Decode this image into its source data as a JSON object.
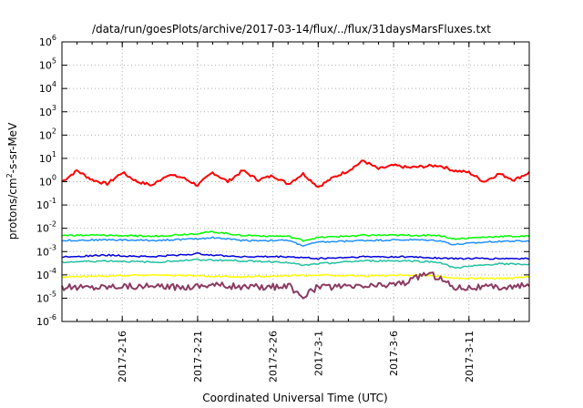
{
  "chart_data": {
    "type": "line",
    "title": "/data/run/goesPlots/archive/2017-03-14/flux/../flux/31daysMarsFluxes.txt",
    "xlabel": "Coordinated Universal Time (UTC)",
    "ylabel": {
      "pre": "protons/cm",
      "sup": "2",
      "post": "-s-sr-MeV"
    },
    "yscale": "log",
    "ylim": [
      1e-06,
      1000000.0
    ],
    "xlim": [
      "2017-02-12",
      "2017-03-15"
    ],
    "grid": true,
    "legend": "none",
    "y_ticks": [
      {
        "value": 1e-06,
        "base": "10",
        "exp": "-6"
      },
      {
        "value": 1e-05,
        "base": "10",
        "exp": "-5"
      },
      {
        "value": 0.0001,
        "base": "10",
        "exp": "-4"
      },
      {
        "value": 0.001,
        "base": "10",
        "exp": "-3"
      },
      {
        "value": 0.01,
        "base": "10",
        "exp": "-2"
      },
      {
        "value": 0.1,
        "base": "10",
        "exp": "-1"
      },
      {
        "value": 1,
        "base": "10",
        "exp": "0"
      },
      {
        "value": 10.0,
        "base": "10",
        "exp": "1"
      },
      {
        "value": 100.0,
        "base": "10",
        "exp": "2"
      },
      {
        "value": 1000.0,
        "base": "10",
        "exp": "3"
      },
      {
        "value": 10000.0,
        "base": "10",
        "exp": "4"
      },
      {
        "value": 100000.0,
        "base": "10",
        "exp": "5"
      },
      {
        "value": 1000000.0,
        "base": "10",
        "exp": "6"
      }
    ],
    "x_ticks": [
      {
        "date": "2017-02-16",
        "label": "2017-2-16"
      },
      {
        "date": "2017-02-21",
        "label": "2017-2-21"
      },
      {
        "date": "2017-02-26",
        "label": "2017-2-26"
      },
      {
        "date": "2017-03-01",
        "label": "2017-3-1"
      },
      {
        "date": "2017-03-06",
        "label": "2017-3-6"
      },
      {
        "date": "2017-03-11",
        "label": "2017-3-11"
      }
    ],
    "series": [
      {
        "color": "#ff0000",
        "stroke": 2.0,
        "x": [
          "2017-02-12",
          "2017-02-13",
          "2017-02-14",
          "2017-02-15",
          "2017-02-16",
          "2017-02-17",
          "2017-02-18",
          "2017-02-19",
          "2017-02-20",
          "2017-02-21",
          "2017-02-22",
          "2017-02-23",
          "2017-02-24",
          "2017-02-25",
          "2017-02-26",
          "2017-02-27",
          "2017-02-28",
          "2017-03-01",
          "2017-03-02",
          "2017-03-03",
          "2017-03-04",
          "2017-03-05",
          "2017-03-06",
          "2017-03-07",
          "2017-03-08",
          "2017-03-09",
          "2017-03-10",
          "2017-03-11",
          "2017-03-12",
          "2017-03-13",
          "2017-03-14",
          "2017-03-15"
        ],
        "y": [
          1.0,
          3.0,
          1.2,
          0.8,
          2.5,
          1.0,
          0.7,
          2.0,
          1.5,
          0.7,
          2.5,
          1.0,
          3.0,
          1.2,
          1.8,
          0.8,
          2.2,
          0.6,
          1.5,
          3.0,
          8.0,
          3.5,
          5.0,
          4.0,
          4.5,
          5.0,
          3.0,
          2.5,
          1.0,
          2.2,
          1.2,
          2.5
        ]
      },
      {
        "color": "#00ff00",
        "stroke": 1.5,
        "x": [
          "2017-02-12",
          "2017-02-15",
          "2017-02-18",
          "2017-02-21",
          "2017-02-22",
          "2017-02-24",
          "2017-02-27",
          "2017-02-28",
          "2017-03-01",
          "2017-03-04",
          "2017-03-07",
          "2017-03-09",
          "2017-03-10",
          "2017-03-13",
          "2017-03-15"
        ],
        "y": [
          0.005,
          0.005,
          0.0045,
          0.006,
          0.007,
          0.005,
          0.0045,
          0.003,
          0.004,
          0.005,
          0.005,
          0.005,
          0.0035,
          0.0045,
          0.0045
        ]
      },
      {
        "color": "#1e90ff",
        "stroke": 1.5,
        "x": [
          "2017-02-12",
          "2017-02-15",
          "2017-02-18",
          "2017-02-21",
          "2017-02-22",
          "2017-02-24",
          "2017-02-27",
          "2017-02-28",
          "2017-03-01",
          "2017-03-04",
          "2017-03-07",
          "2017-03-09",
          "2017-03-10",
          "2017-03-13",
          "2017-03-15"
        ],
        "y": [
          0.003,
          0.0032,
          0.003,
          0.0035,
          0.004,
          0.003,
          0.003,
          0.0018,
          0.0025,
          0.003,
          0.0032,
          0.003,
          0.002,
          0.0028,
          0.0028
        ]
      },
      {
        "color": "#0000dd",
        "stroke": 1.5,
        "x": [
          "2017-02-12",
          "2017-02-15",
          "2017-02-18",
          "2017-02-21",
          "2017-02-24",
          "2017-02-27",
          "2017-03-01",
          "2017-03-04",
          "2017-03-07",
          "2017-03-10",
          "2017-03-13",
          "2017-03-15"
        ],
        "y": [
          0.0006,
          0.0007,
          0.0006,
          0.0008,
          0.0006,
          0.0006,
          0.0005,
          0.0006,
          0.0006,
          0.0005,
          0.0005,
          0.0005
        ]
      },
      {
        "color": "#20c0a0",
        "stroke": 1.5,
        "x": [
          "2017-02-12",
          "2017-02-15",
          "2017-02-18",
          "2017-02-21",
          "2017-02-24",
          "2017-02-27",
          "2017-02-28",
          "2017-03-01",
          "2017-03-04",
          "2017-03-07",
          "2017-03-09",
          "2017-03-10",
          "2017-03-13",
          "2017-03-15"
        ],
        "y": [
          0.00035,
          0.0004,
          0.00035,
          0.00045,
          0.0004,
          0.00035,
          0.00025,
          0.0003,
          0.0004,
          0.0004,
          0.00035,
          0.0002,
          0.0003,
          0.00028
        ]
      },
      {
        "color": "#ffff00",
        "stroke": 1.5,
        "x": [
          "2017-02-12",
          "2017-02-15",
          "2017-02-18",
          "2017-02-21",
          "2017-02-24",
          "2017-02-27",
          "2017-03-01",
          "2017-03-04",
          "2017-03-07",
          "2017-03-09",
          "2017-03-10",
          "2017-03-13",
          "2017-03-15"
        ],
        "y": [
          8e-05,
          9e-05,
          0.0001,
          9e-05,
          8e-05,
          9e-05,
          0.0001,
          9e-05,
          0.0001,
          9e-05,
          7e-05,
          7e-05,
          8e-05
        ]
      },
      {
        "color": "#8b3a62",
        "stroke": 2.0,
        "x": [
          "2017-02-12",
          "2017-02-14",
          "2017-02-16",
          "2017-02-18",
          "2017-02-20",
          "2017-02-22",
          "2017-02-24",
          "2017-02-26",
          "2017-02-27",
          "2017-02-28",
          "2017-03-01",
          "2017-03-03",
          "2017-03-05",
          "2017-03-07",
          "2017-03-08",
          "2017-03-09",
          "2017-03-10",
          "2017-03-12",
          "2017-03-14",
          "2017-03-15"
        ],
        "y": [
          3e-05,
          3e-05,
          3.5e-05,
          3e-05,
          3e-05,
          4e-05,
          3e-05,
          3e-05,
          3.5e-05,
          1.2e-05,
          3e-05,
          3e-05,
          3.5e-05,
          5e-05,
          0.00012,
          8e-05,
          3e-05,
          3e-05,
          3e-05,
          3.5e-05
        ]
      }
    ]
  }
}
